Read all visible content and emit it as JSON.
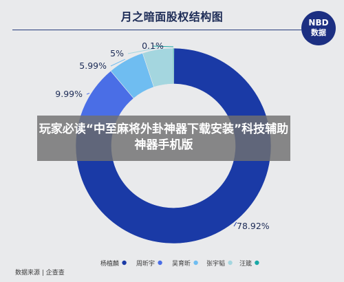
{
  "chart": {
    "title": "月之暗面股权结构图"
  },
  "logo": {
    "line1": "NBD",
    "line2": "数据"
  },
  "overlay": {
    "text": "玩家必读“中至麻将外卦神器下载安装”科技辅助神器手机版"
  },
  "footer": {
    "source": "数据来源 | 企查查"
  },
  "colors": {
    "background": "#e9eaec",
    "title": "#1c2b56"
  },
  "chart_data": {
    "type": "pie",
    "style": "donut",
    "title": "月之暗面股权结构图",
    "legend_position": "bottom",
    "series": [
      {
        "name": "杨植麟",
        "value": 78.92,
        "label": "78.92%",
        "color": "#1a3aa6"
      },
      {
        "name": "周昕宇",
        "value": 9.99,
        "label": "9.99%",
        "color": "#4a6ee6"
      },
      {
        "name": "吴育昕",
        "value": 5.99,
        "label": "5.99%",
        "color": "#6fbdf1"
      },
      {
        "name": "张宇韬",
        "value": 5,
        "label": "5%",
        "color": "#a4d6df"
      },
      {
        "name": "汪箴",
        "value": 0.1,
        "label": "0.1%",
        "color": "#19a8a6"
      }
    ]
  }
}
